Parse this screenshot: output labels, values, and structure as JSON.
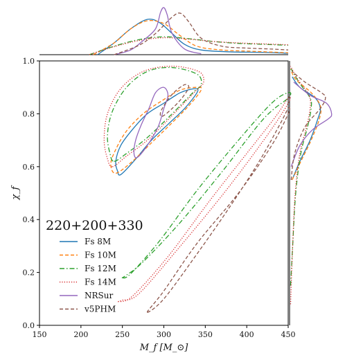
{
  "chart_data": {
    "type": "contour",
    "xlabel": "M_f [M_⊙]",
    "ylabel": "χ_f",
    "xlim": [
      150,
      450
    ],
    "ylim": [
      0.0,
      1.0
    ],
    "xticks": [
      150,
      200,
      250,
      300,
      350,
      400,
      450
    ],
    "yticks": [
      0.0,
      0.2,
      0.4,
      0.6,
      0.8,
      1.0
    ],
    "xtick_labels": [
      "150",
      "200",
      "250",
      "300",
      "350",
      "400",
      "450"
    ],
    "ytick_labels": [
      "0.0",
      "0.2",
      "0.4",
      "0.6",
      "0.8",
      "1.0"
    ],
    "annotation": "220+200+330",
    "legend_position": "lower-left",
    "series": [
      {
        "name": "Fs 8M",
        "color": "#1f77b4",
        "dash": "solid",
        "contours": [
          [
            [
              248,
              0.57
            ],
            [
              265,
              0.625
            ],
            [
              285,
              0.7
            ],
            [
              305,
              0.76
            ],
            [
              325,
              0.82
            ],
            [
              340,
              0.88
            ],
            [
              338,
              0.895
            ],
            [
              320,
              0.88
            ],
            [
              300,
              0.84
            ],
            [
              280,
              0.8
            ],
            [
              262,
              0.74
            ],
            [
              248,
              0.68
            ],
            [
              242,
              0.62
            ],
            [
              244,
              0.585
            ]
          ]
        ],
        "marginal_x": [
          [
            220,
            0.0
          ],
          [
            240,
            0.25
          ],
          [
            260,
            0.55
          ],
          [
            280,
            0.75
          ],
          [
            295,
            0.68
          ],
          [
            310,
            0.45
          ],
          [
            325,
            0.22
          ],
          [
            345,
            0.1
          ],
          [
            380,
            0.06
          ],
          [
            420,
            0.05
          ],
          [
            450,
            0.03
          ]
        ],
        "marginal_y": [
          [
            0.55,
            0.05
          ],
          [
            0.62,
            0.2
          ],
          [
            0.7,
            0.4
          ],
          [
            0.78,
            0.55
          ],
          [
            0.82,
            0.6
          ],
          [
            0.86,
            0.5
          ],
          [
            0.9,
            0.2
          ],
          [
            0.94,
            0.05
          ]
        ]
      },
      {
        "name": "Fs 10M",
        "color": "#ff7f0e",
        "dash": "dashed",
        "contours": [
          [
            [
              242,
              0.575
            ],
            [
              262,
              0.62
            ],
            [
              285,
              0.69
            ],
            [
              308,
              0.76
            ],
            [
              330,
              0.83
            ],
            [
              345,
              0.89
            ],
            [
              340,
              0.9
            ],
            [
              320,
              0.89
            ],
            [
              298,
              0.85
            ],
            [
              275,
              0.8
            ],
            [
              255,
              0.735
            ],
            [
              242,
              0.665
            ],
            [
              236,
              0.61
            ]
          ]
        ],
        "marginal_x": [
          [
            215,
            0.0
          ],
          [
            240,
            0.25
          ],
          [
            260,
            0.55
          ],
          [
            280,
            0.72
          ],
          [
            300,
            0.66
          ],
          [
            320,
            0.4
          ],
          [
            340,
            0.18
          ],
          [
            370,
            0.1
          ],
          [
            410,
            0.07
          ],
          [
            450,
            0.04
          ]
        ],
        "marginal_y": [
          [
            0.55,
            0.05
          ],
          [
            0.62,
            0.22
          ],
          [
            0.7,
            0.42
          ],
          [
            0.78,
            0.58
          ],
          [
            0.83,
            0.6
          ],
          [
            0.88,
            0.42
          ],
          [
            0.93,
            0.12
          ],
          [
            0.97,
            0.02
          ]
        ]
      },
      {
        "name": "Fs 12M",
        "color": "#2ca02c",
        "dash": "dashdot",
        "contours": [
          [
            [
              240,
              0.62
            ],
            [
              255,
              0.65
            ],
            [
              280,
              0.71
            ],
            [
              310,
              0.8
            ],
            [
              335,
              0.88
            ],
            [
              345,
              0.91
            ],
            [
              340,
              0.95
            ],
            [
              310,
              0.975
            ],
            [
              280,
              0.96
            ],
            [
              255,
              0.9
            ],
            [
              238,
              0.81
            ],
            [
              232,
              0.72
            ],
            [
              235,
              0.65
            ]
          ],
          [
            [
              250,
              0.18
            ],
            [
              260,
              0.195
            ],
            [
              295,
              0.32
            ],
            [
              340,
              0.51
            ],
            [
              390,
              0.7
            ],
            [
              430,
              0.84
            ],
            [
              450,
              0.88
            ],
            [
              450,
              0.86
            ],
            [
              420,
              0.78
            ],
            [
              370,
              0.58
            ],
            [
              320,
              0.39
            ],
            [
              275,
              0.24
            ],
            [
              255,
              0.19
            ]
          ]
        ],
        "marginal_x": [
          [
            210,
            0.0
          ],
          [
            240,
            0.18
          ],
          [
            270,
            0.32
          ],
          [
            300,
            0.38
          ],
          [
            330,
            0.34
          ],
          [
            360,
            0.28
          ],
          [
            390,
            0.24
          ],
          [
            420,
            0.22
          ],
          [
            450,
            0.2
          ]
        ],
        "marginal_y": [
          [
            0.15,
            0.02
          ],
          [
            0.3,
            0.06
          ],
          [
            0.5,
            0.12
          ],
          [
            0.65,
            0.22
          ],
          [
            0.75,
            0.35
          ],
          [
            0.82,
            0.42
          ],
          [
            0.86,
            0.4
          ],
          [
            0.92,
            0.18
          ],
          [
            0.97,
            0.03
          ]
        ]
      },
      {
        "name": "Fs 14M",
        "color": "#d62728",
        "dash": "dotted",
        "contours": [
          [
            [
              238,
              0.6
            ],
            [
              255,
              0.64
            ],
            [
              282,
              0.705
            ],
            [
              312,
              0.8
            ],
            [
              338,
              0.885
            ],
            [
              348,
              0.92
            ],
            [
              342,
              0.96
            ],
            [
              310,
              0.98
            ],
            [
              275,
              0.96
            ],
            [
              248,
              0.895
            ],
            [
              232,
              0.8
            ],
            [
              228,
              0.7
            ],
            [
              232,
              0.63
            ]
          ],
          [
            [
              245,
              0.09
            ],
            [
              262,
              0.11
            ],
            [
              305,
              0.26
            ],
            [
              355,
              0.47
            ],
            [
              400,
              0.65
            ],
            [
              435,
              0.79
            ],
            [
              450,
              0.86
            ],
            [
              450,
              0.84
            ],
            [
              425,
              0.72
            ],
            [
              375,
              0.51
            ],
            [
              320,
              0.3
            ],
            [
              270,
              0.12
            ],
            [
              250,
              0.095
            ]
          ]
        ],
        "marginal_x": [
          [
            210,
            0.0
          ],
          [
            240,
            0.17
          ],
          [
            270,
            0.3
          ],
          [
            300,
            0.36
          ],
          [
            330,
            0.33
          ],
          [
            360,
            0.28
          ],
          [
            390,
            0.25
          ],
          [
            420,
            0.23
          ],
          [
            450,
            0.21
          ]
        ],
        "marginal_y": [
          [
            0.08,
            0.02
          ],
          [
            0.3,
            0.06
          ],
          [
            0.5,
            0.11
          ],
          [
            0.65,
            0.2
          ],
          [
            0.75,
            0.33
          ],
          [
            0.82,
            0.4
          ],
          [
            0.87,
            0.38
          ],
          [
            0.93,
            0.16
          ],
          [
            0.98,
            0.02
          ]
        ]
      },
      {
        "name": "NRSur",
        "color": "#9467bd",
        "dash": "solid",
        "contours": [
          [
            [
              268,
              0.635
            ],
            [
              280,
              0.68
            ],
            [
              293,
              0.75
            ],
            [
              300,
              0.82
            ],
            [
              305,
              0.87
            ],
            [
              300,
              0.9
            ],
            [
              290,
              0.88
            ],
            [
              282,
              0.82
            ],
            [
              273,
              0.76
            ],
            [
              266,
              0.7
            ],
            [
              264,
              0.65
            ]
          ]
        ],
        "marginal_x": [
          [
            240,
            0.0
          ],
          [
            260,
            0.1
          ],
          [
            275,
            0.3
          ],
          [
            290,
            0.55
          ],
          [
            296,
            0.9
          ],
          [
            300,
            1.0
          ],
          [
            304,
            0.85
          ],
          [
            310,
            0.45
          ],
          [
            325,
            0.12
          ],
          [
            345,
            0.02
          ]
        ],
        "marginal_y": [
          [
            0.6,
            0.03
          ],
          [
            0.68,
            0.2
          ],
          [
            0.74,
            0.45
          ],
          [
            0.78,
            0.75
          ],
          [
            0.8,
            0.82
          ],
          [
            0.84,
            0.72
          ],
          [
            0.87,
            0.4
          ],
          [
            0.92,
            0.08
          ]
        ]
      },
      {
        "name": "v5PHM",
        "color": "#8c564b",
        "dash": "dashed",
        "contours": [
          [
            [
              298,
              0.79
            ],
            [
              310,
              0.82
            ],
            [
              322,
              0.86
            ],
            [
              330,
              0.9
            ],
            [
              325,
              0.91
            ],
            [
              312,
              0.88
            ],
            [
              302,
              0.84
            ],
            [
              296,
              0.805
            ]
          ],
          [
            [
              280,
              0.05
            ],
            [
              300,
              0.1
            ],
            [
              340,
              0.27
            ],
            [
              380,
              0.45
            ],
            [
              415,
              0.62
            ],
            [
              440,
              0.76
            ],
            [
              450,
              0.82
            ],
            [
              450,
              0.8
            ],
            [
              430,
              0.68
            ],
            [
              390,
              0.5
            ],
            [
              340,
              0.31
            ],
            [
              300,
              0.13
            ]
          ]
        ],
        "marginal_x": [
          [
            240,
            0.0
          ],
          [
            270,
            0.2
          ],
          [
            290,
            0.45
          ],
          [
            310,
            0.8
          ],
          [
            320,
            0.88
          ],
          [
            330,
            0.7
          ],
          [
            345,
            0.35
          ],
          [
            370,
            0.18
          ],
          [
            400,
            0.14
          ],
          [
            430,
            0.12
          ],
          [
            450,
            0.1
          ]
        ],
        "marginal_y": [
          [
            0.55,
            0.03
          ],
          [
            0.65,
            0.1
          ],
          [
            0.75,
            0.3
          ],
          [
            0.82,
            0.6
          ],
          [
            0.86,
            0.7
          ],
          [
            0.88,
            0.62
          ],
          [
            0.92,
            0.3
          ],
          [
            0.96,
            0.05
          ]
        ]
      }
    ]
  }
}
